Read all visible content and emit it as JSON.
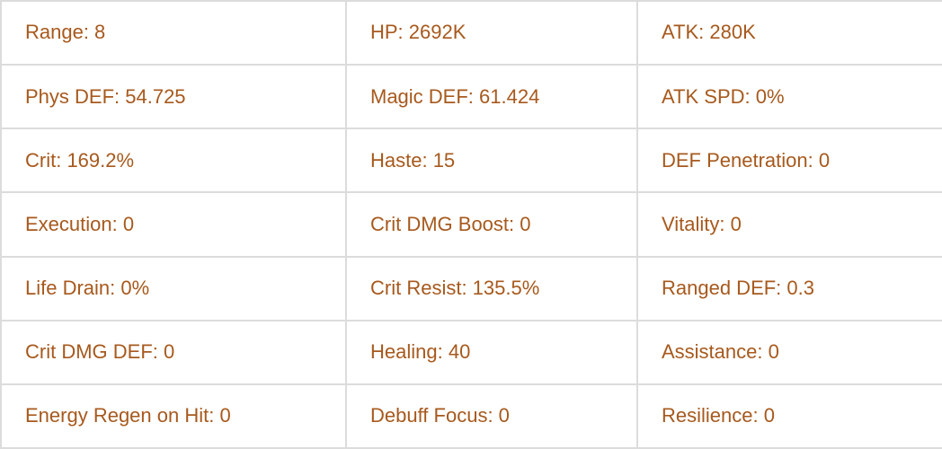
{
  "colors": {
    "text": "#a7591d",
    "border": "#dcdcdc",
    "background": "#ffffff"
  },
  "stats_table": {
    "rows": [
      [
        "Range: 8",
        "HP: 2692K",
        "ATK: 280K"
      ],
      [
        "Phys DEF: 54.725",
        "Magic DEF: 61.424",
        "ATK SPD: 0%"
      ],
      [
        "Crit: 169.2%",
        "Haste: 15",
        "DEF Penetration: 0"
      ],
      [
        "Execution: 0",
        "Crit DMG Boost: 0",
        "Vitality: 0"
      ],
      [
        "Life Drain: 0%",
        "Crit Resist: 135.5%",
        "Ranged DEF: 0.3"
      ],
      [
        "Crit DMG DEF: 0",
        "Healing: 40",
        "Assistance: 0"
      ],
      [
        "Energy Regen on Hit: 0",
        "Debuff Focus: 0",
        "Resilience: 0"
      ]
    ]
  }
}
